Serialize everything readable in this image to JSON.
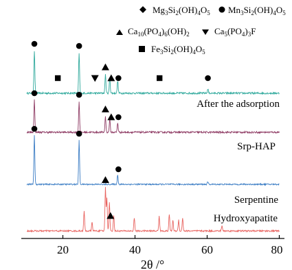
{
  "chart_data": {
    "type": "line",
    "title": "",
    "xlabel": "2θ /°",
    "ylabel": "",
    "xlim": [
      8,
      80
    ],
    "x_ticks": [
      "20",
      "40",
      "60",
      "80"
    ],
    "grid": false,
    "legend": {
      "placement": "top-right",
      "items": [
        {
          "marker": "diamond",
          "label": "Mg3Si2(OH)4O5"
        },
        {
          "marker": "circle",
          "label": "Mn3Si2(OH)4O5"
        },
        {
          "marker": "triangle-up",
          "label": "Ca10(PO4)6(OH)2"
        },
        {
          "marker": "triangle-down",
          "label": "Ca5(PO4)3F"
        },
        {
          "marker": "square",
          "label": "Fe3Si2(OH)4O5"
        }
      ]
    },
    "series": [
      {
        "name": "After the adsorption",
        "color": "#2fa99c",
        "peaks": [
          [
            12.1,
            1.0
          ],
          [
            24.5,
            0.95
          ],
          [
            31.8,
            0.45
          ],
          [
            33.0,
            0.38
          ],
          [
            35.2,
            0.3
          ],
          [
            60.2,
            0.1
          ]
        ],
        "markers": [
          {
            "marker": "circle",
            "x": 12.1
          },
          {
            "marker": "square",
            "x": 18.6
          },
          {
            "marker": "circle",
            "x": 24.5
          },
          {
            "marker": "triangle-down",
            "x": 28.9
          },
          {
            "marker": "triangle-up",
            "x": 31.8
          },
          {
            "marker": "triangle-up",
            "x": 33.4
          },
          {
            "marker": "circle",
            "x": 35.4
          },
          {
            "marker": "square",
            "x": 46.8
          },
          {
            "marker": "circle",
            "x": 60.2
          }
        ]
      },
      {
        "name": "Srp-HAP",
        "color": "#8e3a63",
        "peaks": [
          [
            12.1,
            1.0
          ],
          [
            24.5,
            0.95
          ],
          [
            31.8,
            0.5
          ],
          [
            33.0,
            0.42
          ],
          [
            35.2,
            0.3
          ]
        ],
        "markers": [
          {
            "marker": "circle",
            "x": 12.1
          },
          {
            "marker": "circle",
            "x": 24.5
          },
          {
            "marker": "triangle-up",
            "x": 31.8
          },
          {
            "marker": "triangle-up",
            "x": 33.4
          },
          {
            "marker": "circle",
            "x": 35.4
          }
        ]
      },
      {
        "name": "Serpentine",
        "color": "#3a7cc4",
        "peaks": [
          [
            12.1,
            1.0
          ],
          [
            24.5,
            0.9
          ],
          [
            35.2,
            0.2
          ],
          [
            60.2,
            0.05
          ]
        ],
        "markers": [
          {
            "marker": "circle",
            "x": 12.1
          },
          {
            "marker": "circle",
            "x": 24.5
          },
          {
            "marker": "circle",
            "x": 35.4
          }
        ]
      },
      {
        "name": "Hydroxyapatite",
        "color": "#e8625e",
        "peaks": [
          [
            25.9,
            0.45
          ],
          [
            28.1,
            0.2
          ],
          [
            31.8,
            1.0
          ],
          [
            32.2,
            0.75
          ],
          [
            32.9,
            0.65
          ],
          [
            34.1,
            0.35
          ],
          [
            39.8,
            0.3
          ],
          [
            46.7,
            0.35
          ],
          [
            49.5,
            0.38
          ],
          [
            50.5,
            0.25
          ],
          [
            52.1,
            0.25
          ],
          [
            53.2,
            0.3
          ],
          [
            64.1,
            0.12
          ]
        ],
        "markers": [
          {
            "marker": "triangle-up",
            "x": 31.8
          },
          {
            "marker": "triangle-up",
            "x": 33.2
          }
        ]
      }
    ]
  }
}
